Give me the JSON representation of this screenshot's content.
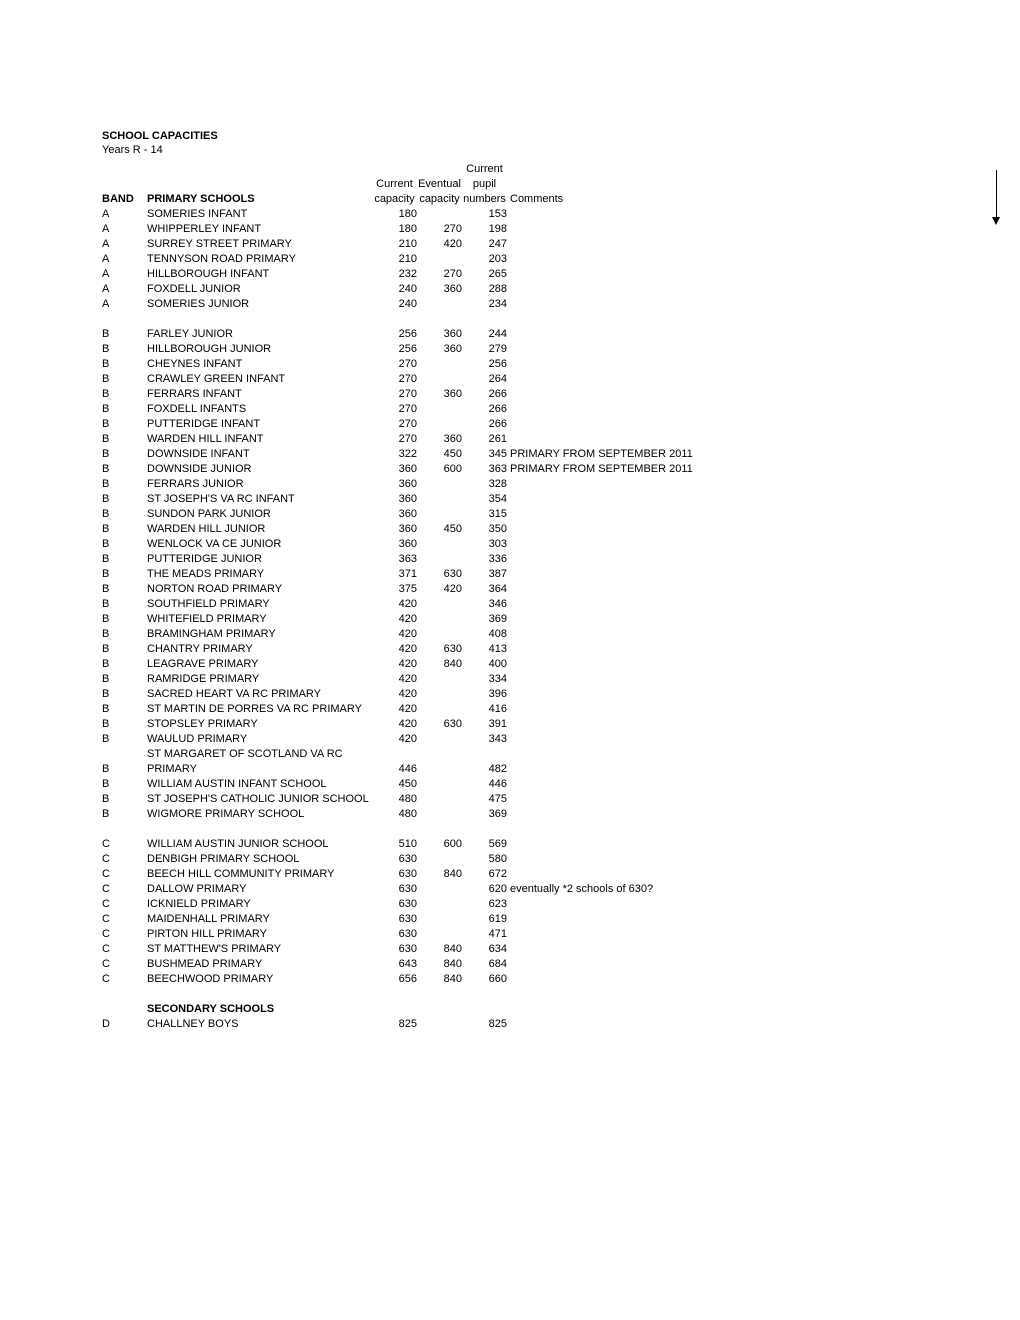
{
  "title": "SCHOOL CAPACITIES",
  "subtitle": "Years R - 14",
  "headers": {
    "band": "BAND",
    "name": "PRIMARY SCHOOLS",
    "current_top": "Current",
    "current_l1": "Current",
    "eventual_l1": "Eventual",
    "pupil_l1": "pupil",
    "current_l2": "capacity",
    "eventual_l2": "capacity",
    "pupil_l2": "numbers",
    "comments": "Comments"
  },
  "group_a": [
    {
      "band": "A",
      "name": "SOMERIES INFANT",
      "cur": "180",
      "evt": "",
      "pup": "153",
      "com": ""
    },
    {
      "band": "A",
      "name": "WHIPPERLEY INFANT",
      "cur": "180",
      "evt": "270",
      "pup": "198",
      "com": ""
    },
    {
      "band": "A",
      "name": "SURREY STREET PRIMARY",
      "cur": "210",
      "evt": "420",
      "pup": "247",
      "com": ""
    },
    {
      "band": "A",
      "name": "TENNYSON ROAD PRIMARY",
      "cur": "210",
      "evt": "",
      "pup": "203",
      "com": ""
    },
    {
      "band": "A",
      "name": "HILLBOROUGH INFANT",
      "cur": "232",
      "evt": "270",
      "pup": "265",
      "com": ""
    },
    {
      "band": "A",
      "name": "FOXDELL JUNIOR",
      "cur": "240",
      "evt": "360",
      "pup": "288",
      "com": ""
    },
    {
      "band": "A",
      "name": "SOMERIES JUNIOR",
      "cur": "240",
      "evt": "",
      "pup": "234",
      "com": ""
    }
  ],
  "group_b": [
    {
      "band": "B",
      "name": "FARLEY JUNIOR",
      "cur": "256",
      "evt": "360",
      "pup": "244",
      "com": ""
    },
    {
      "band": "B",
      "name": "HILLBOROUGH JUNIOR",
      "cur": "256",
      "evt": "360",
      "pup": "279",
      "com": ""
    },
    {
      "band": "B",
      "name": "CHEYNES INFANT",
      "cur": "270",
      "evt": "",
      "pup": "256",
      "com": ""
    },
    {
      "band": "B",
      "name": "CRAWLEY GREEN INFANT",
      "cur": "270",
      "evt": "",
      "pup": "264",
      "com": ""
    },
    {
      "band": "B",
      "name": "FERRARS INFANT",
      "cur": "270",
      "evt": "360",
      "pup": "266",
      "com": ""
    },
    {
      "band": "B",
      "name": "FOXDELL INFANTS",
      "cur": "270",
      "evt": "",
      "pup": "266",
      "com": ""
    },
    {
      "band": "B",
      "name": "PUTTERIDGE INFANT",
      "cur": "270",
      "evt": "",
      "pup": "266",
      "com": ""
    },
    {
      "band": "B",
      "name": "WARDEN HILL INFANT",
      "cur": "270",
      "evt": "360",
      "pup": "261",
      "com": ""
    },
    {
      "band": "B",
      "name": "DOWNSIDE INFANT",
      "cur": "322",
      "evt": "450",
      "pup": "345",
      "com": "PRIMARY FROM SEPTEMBER 2011"
    },
    {
      "band": "B",
      "name": "DOWNSIDE JUNIOR",
      "cur": "360",
      "evt": "600",
      "pup": "363",
      "com": "PRIMARY FROM SEPTEMBER 2011"
    },
    {
      "band": "B",
      "name": "FERRARS JUNIOR",
      "cur": "360",
      "evt": "",
      "pup": "328",
      "com": ""
    },
    {
      "band": "B",
      "name": "ST JOSEPH'S VA RC INFANT",
      "cur": "360",
      "evt": "",
      "pup": "354",
      "com": ""
    },
    {
      "band": "B",
      "name": "SUNDON PARK JUNIOR",
      "cur": "360",
      "evt": "",
      "pup": "315",
      "com": ""
    },
    {
      "band": "B",
      "name": "WARDEN HILL JUNIOR",
      "cur": "360",
      "evt": "450",
      "pup": "350",
      "com": ""
    },
    {
      "band": "B",
      "name": "WENLOCK VA CE JUNIOR",
      "cur": "360",
      "evt": "",
      "pup": "303",
      "com": ""
    },
    {
      "band": "B",
      "name": "PUTTERIDGE JUNIOR",
      "cur": "363",
      "evt": "",
      "pup": "336",
      "com": ""
    },
    {
      "band": "B",
      "name": "THE MEADS PRIMARY",
      "cur": "371",
      "evt": "630",
      "pup": "387",
      "com": ""
    },
    {
      "band": "B",
      "name": "NORTON ROAD PRIMARY",
      "cur": "375",
      "evt": "420",
      "pup": "364",
      "com": ""
    },
    {
      "band": "B",
      "name": "SOUTHFIELD PRIMARY",
      "cur": "420",
      "evt": "",
      "pup": "346",
      "com": ""
    },
    {
      "band": "B",
      "name": "WHITEFIELD PRIMARY",
      "cur": "420",
      "evt": "",
      "pup": "369",
      "com": ""
    },
    {
      "band": "B",
      "name": "BRAMINGHAM PRIMARY",
      "cur": "420",
      "evt": "",
      "pup": "408",
      "com": ""
    },
    {
      "band": "B",
      "name": "CHANTRY PRIMARY",
      "cur": "420",
      "evt": "630",
      "pup": "413",
      "com": ""
    },
    {
      "band": "B",
      "name": "LEAGRAVE PRIMARY",
      "cur": "420",
      "evt": "840",
      "pup": "400",
      "com": ""
    },
    {
      "band": "B",
      "name": "RAMRIDGE PRIMARY",
      "cur": "420",
      "evt": "",
      "pup": "334",
      "com": ""
    },
    {
      "band": "B",
      "name": "SACRED HEART VA RC PRIMARY",
      "cur": "420",
      "evt": "",
      "pup": "396",
      "com": ""
    },
    {
      "band": "B",
      "name": "ST MARTIN DE PORRES VA RC PRIMARY",
      "cur": "420",
      "evt": "",
      "pup": "416",
      "com": ""
    },
    {
      "band": "B",
      "name": "STOPSLEY PRIMARY",
      "cur": "420",
      "evt": "630",
      "pup": "391",
      "com": ""
    },
    {
      "band": "B",
      "name": "WAULUD PRIMARY",
      "cur": "420",
      "evt": "",
      "pup": "343",
      "com": ""
    },
    {
      "band": "B",
      "name": "ST MARGARET OF SCOTLAND VA RC PRIMARY",
      "cur": "446",
      "evt": "",
      "pup": "482",
      "com": ""
    },
    {
      "band": "B",
      "name": "WILLIAM AUSTIN INFANT SCHOOL",
      "cur": "450",
      "evt": "",
      "pup": "446",
      "com": ""
    },
    {
      "band": "B",
      "name": "ST JOSEPH'S CATHOLIC JUNIOR SCHOOL",
      "cur": "480",
      "evt": "",
      "pup": "475",
      "com": ""
    },
    {
      "band": "B",
      "name": "WIGMORE PRIMARY SCHOOL",
      "cur": "480",
      "evt": "",
      "pup": "369",
      "com": ""
    }
  ],
  "group_c": [
    {
      "band": "C",
      "name": "WILLIAM AUSTIN JUNIOR SCHOOL",
      "cur": "510",
      "evt": "600",
      "pup": "569",
      "com": ""
    },
    {
      "band": "C",
      "name": "DENBIGH PRIMARY SCHOOL",
      "cur": "630",
      "evt": "",
      "pup": "580",
      "com": ""
    },
    {
      "band": "C",
      "name": "BEECH HILL COMMUNITY PRIMARY",
      "cur": "630",
      "evt": "840",
      "pup": "672",
      "com": ""
    },
    {
      "band": "C",
      "name": "DALLOW PRIMARY",
      "cur": "630",
      "evt": "",
      "pup": "620",
      "com": "eventually *2 schools of 630?"
    },
    {
      "band": "C",
      "name": "ICKNIELD PRIMARY",
      "cur": "630",
      "evt": "",
      "pup": "623",
      "com": ""
    },
    {
      "band": "C",
      "name": "MAIDENHALL PRIMARY",
      "cur": "630",
      "evt": "",
      "pup": "619",
      "com": ""
    },
    {
      "band": "C",
      "name": "PIRTON HILL PRIMARY",
      "cur": "630",
      "evt": "",
      "pup": "471",
      "com": ""
    },
    {
      "band": "C",
      "name": "ST MATTHEW'S PRIMARY",
      "cur": "630",
      "evt": "840",
      "pup": "634",
      "com": ""
    },
    {
      "band": "C",
      "name": "BUSHMEAD PRIMARY",
      "cur": "643",
      "evt": "840",
      "pup": "684",
      "com": ""
    },
    {
      "band": "C",
      "name": "BEECHWOOD PRIMARY",
      "cur": "656",
      "evt": "840",
      "pup": "660",
      "com": ""
    }
  ],
  "secondary_heading": "SECONDARY SCHOOLS",
  "group_d": [
    {
      "band": "D",
      "name": "CHALLNEY BOYS",
      "cur": "825",
      "evt": "",
      "pup": "825",
      "com": ""
    }
  ]
}
